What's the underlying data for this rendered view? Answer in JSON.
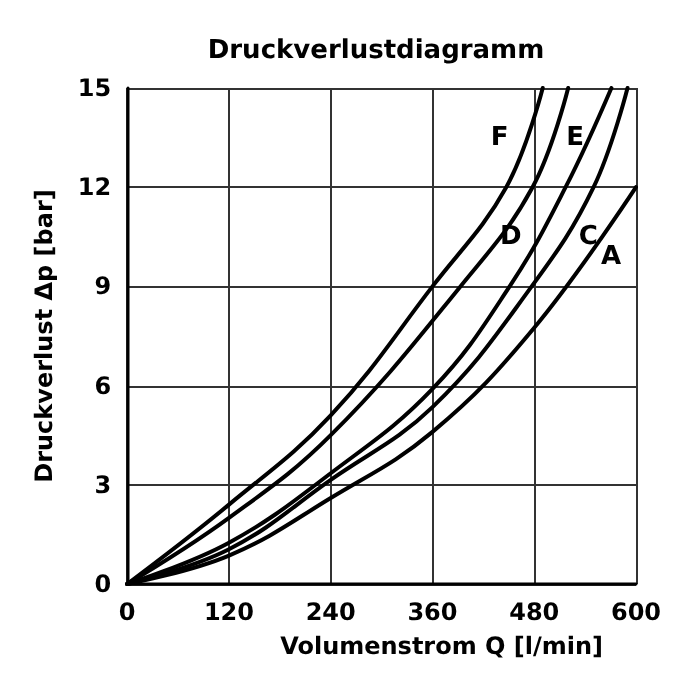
{
  "chart_data": {
    "type": "line",
    "title": "Druckverlustdiagramm",
    "xlabel": "Volumenstrom Q [l/min]",
    "ylabel": "Druckverlust Δp [bar]",
    "series": [
      {
        "name": "F",
        "color": "#000000",
        "x": [
          0,
          120,
          240,
          360,
          447,
          490
        ],
        "values": [
          0,
          2.4,
          5.1,
          9,
          12,
          15
        ]
      },
      {
        "name": "E",
        "color": "#000000",
        "x": [
          0,
          120,
          240,
          393,
          478,
          520
        ],
        "values": [
          0,
          2,
          4.5,
          9,
          12,
          15
        ]
      },
      {
        "name": "D",
        "color": "#000000",
        "x": [
          0,
          120,
          240,
          360,
          451,
          517,
          571
        ],
        "values": [
          0,
          1.25,
          3.35,
          5.9,
          9,
          12,
          15
        ]
      },
      {
        "name": "C",
        "color": "#000000",
        "x": [
          0,
          120,
          240,
          360,
          477,
          550,
          590
        ],
        "values": [
          0,
          1.05,
          3.15,
          5.35,
          9,
          12,
          15
        ]
      },
      {
        "name": "A",
        "color": "#000000",
        "x": [
          0,
          120,
          240,
          360,
          480,
          600
        ],
        "values": [
          0,
          0.86,
          2.6,
          4.6,
          7.75,
          12
        ]
      }
    ],
    "xlim": [
      0,
      600
    ],
    "xticks": [
      0,
      120,
      240,
      360,
      480,
      600
    ],
    "ylim": [
      0,
      15
    ],
    "yticks": [
      0,
      3,
      6,
      9,
      12,
      15
    ],
    "grid": true,
    "legend": false,
    "marker": "none",
    "line_style": "solid"
  }
}
